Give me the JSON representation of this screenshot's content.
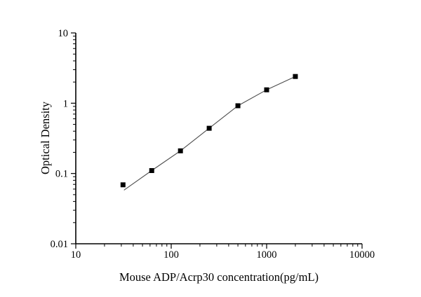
{
  "chart_data": {
    "type": "scatter",
    "title": "",
    "xlabel": "Mouse ADP/Acrp30 concentration(pg/mL)",
    "ylabel": "Optical Density",
    "x_scale": "log",
    "y_scale": "log",
    "xlim": [
      10,
      10000
    ],
    "ylim": [
      0.01,
      10
    ],
    "x_ticks": [
      {
        "value": 10,
        "label": "10"
      },
      {
        "value": 100,
        "label": "100"
      },
      {
        "value": 1000,
        "label": "1000"
      },
      {
        "value": 10000,
        "label": "10000"
      }
    ],
    "y_ticks": [
      {
        "value": 10,
        "label": "10"
      },
      {
        "value": 1,
        "label": "1"
      },
      {
        "value": 0.1,
        "label": "0.1"
      },
      {
        "value": 0.01,
        "label": "0.01"
      }
    ],
    "grid": false,
    "legend": false,
    "series": [
      {
        "name": "standard-curve-points",
        "marker": "filled-square",
        "x": [
          31.25,
          62.5,
          125,
          250,
          500,
          1000,
          2000
        ],
        "y": [
          0.069,
          0.11,
          0.21,
          0.44,
          0.92,
          1.55,
          2.4
        ]
      }
    ],
    "trend_line": {
      "x": [
        32,
        62.5,
        125,
        250,
        500,
        1000,
        2000
      ],
      "y": [
        0.058,
        0.11,
        0.21,
        0.44,
        0.92,
        1.55,
        2.4
      ]
    },
    "colors": {
      "background": "#ffffff",
      "axis": "#000000",
      "text": "#000000",
      "marker": "#000000",
      "trend_line": "#4d4d4d"
    }
  }
}
